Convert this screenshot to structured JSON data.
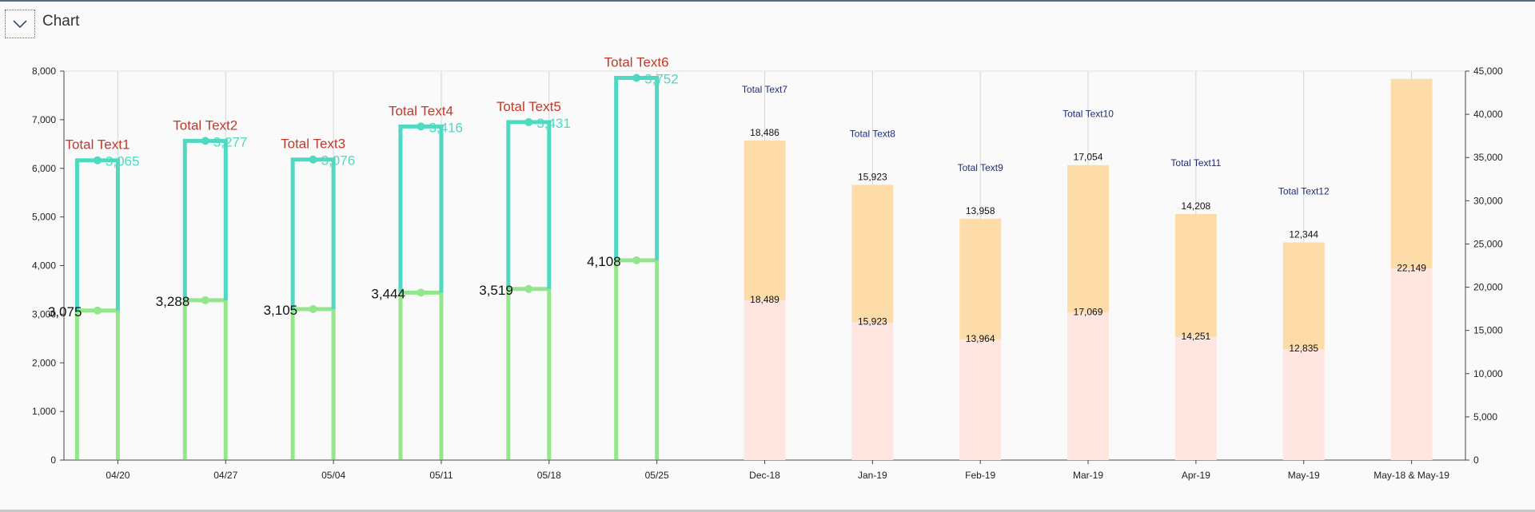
{
  "header": {
    "title": "Chart",
    "toggle_icon": "chevron-down-icon"
  },
  "colors": {
    "teal": "#4fd9c1",
    "green": "#94e68d",
    "peach": "#fddcaa",
    "pink": "#ffe6e1",
    "total_red": "#c0392b",
    "total_navy": "#1f2d7a"
  },
  "chart_data": {
    "type": "bar",
    "categories": [
      "04/20",
      "04/27",
      "05/04",
      "05/11",
      "05/18",
      "05/25",
      "Dec-18",
      "Jan-19",
      "Feb-19",
      "Mar-19",
      "Apr-19",
      "May-19",
      "May-18 & May-19"
    ],
    "y_left": {
      "ylim": [
        0,
        8000
      ],
      "ticks": [
        "0",
        "1,000",
        "2,000",
        "3,000",
        "4,000",
        "5,000",
        "6,000",
        "7,000",
        "8,000"
      ]
    },
    "y_right": {
      "ylim": [
        0,
        45000
      ],
      "ticks": [
        "0",
        "5,000",
        "10,000",
        "15,000",
        "20,000",
        "25,000",
        "30,000",
        "35,000",
        "40,000",
        "45,000"
      ]
    },
    "weekly": [
      {
        "lower": 3075,
        "lower_label": "3,075",
        "upper": 6165,
        "upper_label": "3,065",
        "total_label": "Total Text1"
      },
      {
        "lower": 3288,
        "lower_label": "3,288",
        "upper": 6565,
        "upper_label": "3,277",
        "total_label": "Total Text2"
      },
      {
        "lower": 3105,
        "lower_label": "3,105",
        "upper": 6181,
        "upper_label": "3,076",
        "total_label": "Total Text3"
      },
      {
        "lower": 3444,
        "lower_label": "3,444",
        "upper": 6860,
        "upper_label": "3,416",
        "total_label": "Total Text4"
      },
      {
        "lower": 3519,
        "lower_label": "3,519",
        "upper": 6950,
        "upper_label": "3,431",
        "total_label": "Total Text5"
      },
      {
        "lower": 4108,
        "lower_label": "4,108",
        "upper": 7860,
        "upper_label": "3,752",
        "total_label": "Total Text6"
      }
    ],
    "monthly": [
      {
        "lower": 18489,
        "lower_label": "18,489",
        "upper": 36975,
        "upper_label": "18,486",
        "total_label": "Total Text7"
      },
      {
        "lower": 15923,
        "lower_label": "15,923",
        "upper": 31846,
        "upper_label": "15,923",
        "total_label": "Total Text8"
      },
      {
        "lower": 13964,
        "lower_label": "13,964",
        "upper": 27922,
        "upper_label": "13,958",
        "total_label": "Total Text9"
      },
      {
        "lower": 17069,
        "lower_label": "17,069",
        "upper": 34123,
        "upper_label": "17,054",
        "total_label": "Total Text10"
      },
      {
        "lower": 14251,
        "lower_label": "14,251",
        "upper": 28459,
        "upper_label": "14,208",
        "total_label": "Total Text11"
      },
      {
        "lower": 12835,
        "lower_label": "12,835",
        "upper": 25179,
        "upper_label": "12,344",
        "total_label": "Total Text12"
      },
      {
        "lower": 22149,
        "lower_label": "22,149",
        "upper": 44100,
        "upper_label": "",
        "total_label": ""
      }
    ]
  }
}
